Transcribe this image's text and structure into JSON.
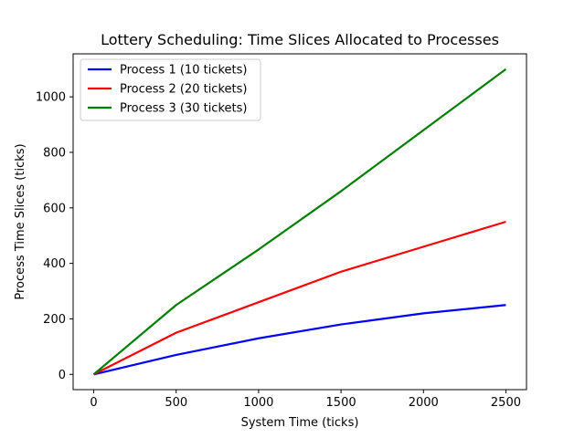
{
  "chart_data": {
    "type": "line",
    "title": "Lottery Scheduling: Time Slices Allocated to Processes",
    "xlabel": "System Time (ticks)",
    "ylabel": "Process Time Slices (ticks)",
    "x": [
      0,
      500,
      1000,
      1500,
      2000,
      2500
    ],
    "xlim": [
      -125,
      2625
    ],
    "ylim": [
      -55,
      1155
    ],
    "xticks": [
      0,
      500,
      1000,
      1500,
      2000,
      2500
    ],
    "yticks": [
      0,
      200,
      400,
      600,
      800,
      1000
    ],
    "grid": false,
    "legend_position": "top-left",
    "series": [
      {
        "name": "Process 1 (10 tickets)",
        "color": "#0000ff",
        "values": [
          0,
          70,
          130,
          180,
          220,
          250
        ]
      },
      {
        "name": "Process 2 (20 tickets)",
        "color": "#ff0000",
        "values": [
          0,
          150,
          260,
          370,
          460,
          550
        ]
      },
      {
        "name": "Process 3 (30 tickets)",
        "color": "#008000",
        "values": [
          0,
          250,
          450,
          660,
          880,
          1100
        ]
      }
    ]
  }
}
